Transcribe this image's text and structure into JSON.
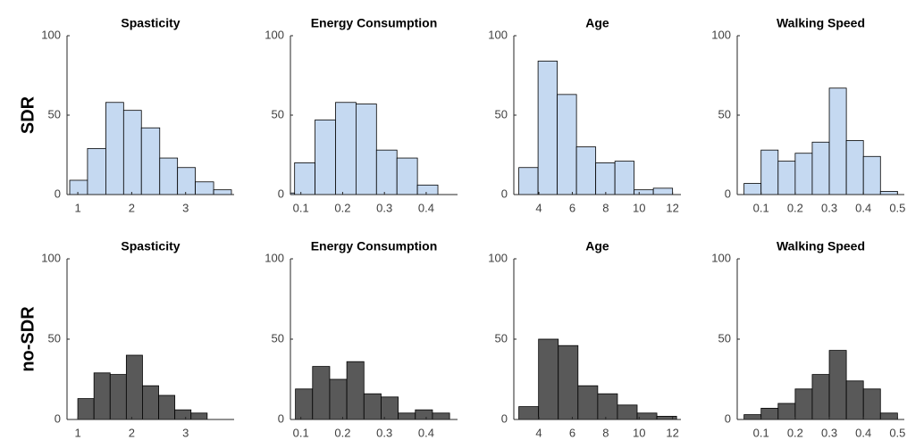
{
  "row_labels": [
    "SDR",
    "no-SDR"
  ],
  "chart_data": [
    {
      "type": "histogram",
      "title": "Spasticity",
      "color": "#c5d9f1",
      "bins": [
        0.85,
        1.18,
        1.52,
        1.85,
        2.18,
        2.52,
        2.85,
        3.18,
        3.52,
        3.85
      ],
      "values": [
        9,
        29,
        58,
        53,
        42,
        23,
        17,
        8,
        3
      ],
      "xlim": [
        0.8,
        3.9
      ],
      "xticks": [
        1,
        2,
        3
      ],
      "ylim": [
        0,
        100
      ],
      "yticks": [
        0,
        50,
        100
      ]
    },
    {
      "type": "histogram",
      "title": "Energy Consumption",
      "color": "#c5d9f1",
      "bins": [
        0.035,
        0.085,
        0.134,
        0.183,
        0.232,
        0.281,
        0.33,
        0.379,
        0.428
      ],
      "values": [
        1,
        20,
        47,
        58,
        57,
        28,
        23,
        6
      ],
      "xlim": [
        0.075,
        0.475
      ],
      "xticks": [
        0.1,
        0.2,
        0.3,
        0.4
      ],
      "ylim": [
        0,
        100
      ],
      "yticks": [
        0,
        50,
        100
      ]
    },
    {
      "type": "histogram",
      "title": "Age",
      "color": "#c5d9f1",
      "bins": [
        2.8,
        3.95,
        5.1,
        6.25,
        7.4,
        8.55,
        9.7,
        10.85,
        12.0
      ],
      "values": [
        17,
        84,
        63,
        30,
        20,
        21,
        3,
        4
      ],
      "xlim": [
        2.5,
        12.5
      ],
      "xticks": [
        4,
        6,
        8,
        10,
        12
      ],
      "ylim": [
        0,
        100
      ],
      "yticks": [
        0,
        50,
        100
      ]
    },
    {
      "type": "histogram",
      "title": "Walking Speed",
      "color": "#c5d9f1",
      "bins": [
        0.05,
        0.1,
        0.15,
        0.2,
        0.25,
        0.3,
        0.35,
        0.4,
        0.45,
        0.5
      ],
      "values": [
        7,
        28,
        21,
        26,
        33,
        67,
        34,
        24,
        2
      ],
      "xlim": [
        0.03,
        0.52
      ],
      "xticks": [
        0.1,
        0.2,
        0.3,
        0.4,
        0.5
      ],
      "ylim": [
        0,
        100
      ],
      "yticks": [
        0,
        50,
        100
      ]
    },
    {
      "type": "histogram",
      "title": "Spasticity",
      "color": "#595959",
      "bins": [
        1.0,
        1.3,
        1.6,
        1.9,
        2.2,
        2.5,
        2.8,
        3.1,
        3.4
      ],
      "values": [
        13,
        29,
        28,
        40,
        21,
        15,
        6,
        4
      ],
      "xlim": [
        0.8,
        3.9
      ],
      "xticks": [
        1,
        2,
        3
      ],
      "ylim": [
        0,
        100
      ],
      "yticks": [
        0,
        50,
        100
      ]
    },
    {
      "type": "histogram",
      "title": "Energy Consumption",
      "color": "#595959",
      "bins": [
        0.087,
        0.128,
        0.169,
        0.21,
        0.251,
        0.292,
        0.333,
        0.374,
        0.415,
        0.456
      ],
      "values": [
        19,
        33,
        25,
        36,
        16,
        14,
        4,
        6,
        4
      ],
      "xlim": [
        0.075,
        0.475
      ],
      "xticks": [
        0.1,
        0.2,
        0.3,
        0.4
      ],
      "ylim": [
        0,
        100
      ],
      "yticks": [
        0,
        50,
        100
      ]
    },
    {
      "type": "histogram",
      "title": "Age",
      "color": "#595959",
      "bins": [
        2.8,
        3.98,
        5.16,
        6.34,
        7.52,
        8.7,
        9.88,
        11.06,
        12.24
      ],
      "values": [
        8,
        50,
        46,
        21,
        16,
        9,
        4,
        2
      ],
      "xlim": [
        2.5,
        12.5
      ],
      "xticks": [
        4,
        6,
        8,
        10,
        12
      ],
      "ylim": [
        0,
        100
      ],
      "yticks": [
        0,
        50,
        100
      ]
    },
    {
      "type": "histogram",
      "title": "Walking Speed",
      "color": "#595959",
      "bins": [
        0.05,
        0.1,
        0.15,
        0.2,
        0.25,
        0.3,
        0.35,
        0.4,
        0.45,
        0.5
      ],
      "values": [
        3,
        7,
        10,
        19,
        28,
        43,
        24,
        19,
        4
      ],
      "xlim": [
        0.03,
        0.52
      ],
      "xticks": [
        0.1,
        0.2,
        0.3,
        0.4,
        0.5
      ],
      "ylim": [
        0,
        100
      ],
      "yticks": [
        0,
        50,
        100
      ]
    }
  ]
}
